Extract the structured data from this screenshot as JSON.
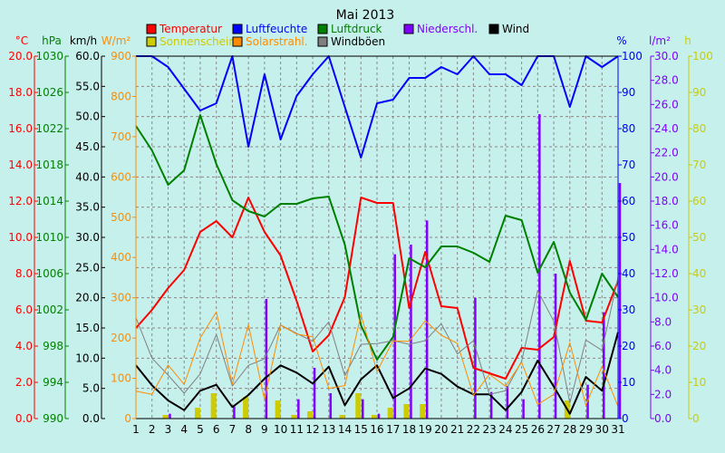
{
  "chart_data": {
    "type": "line",
    "title": "Mai 2013",
    "x": [
      1,
      2,
      3,
      4,
      5,
      6,
      7,
      8,
      9,
      10,
      11,
      12,
      13,
      14,
      15,
      16,
      17,
      18,
      19,
      20,
      21,
      22,
      23,
      24,
      25,
      26,
      27,
      28,
      29,
      30,
      31
    ],
    "left_axes": [
      {
        "unit": "°C",
        "color": "#ff0000",
        "range": [
          0,
          20
        ],
        "ticks": [
          "0.0",
          "2.0",
          "4.0",
          "6.0",
          "8.0",
          "10.0",
          "12.0",
          "14.0",
          "16.0",
          "18.0",
          "20.0"
        ]
      },
      {
        "unit": "hPa",
        "color": "#008000",
        "range": [
          990,
          1030
        ],
        "ticks": [
          "990",
          "994",
          "998",
          "1002",
          "1006",
          "1010",
          "1014",
          "1018",
          "1022",
          "1026",
          "1030"
        ]
      },
      {
        "unit": "km/h",
        "color": "#000000",
        "range": [
          0,
          60
        ],
        "ticks": [
          "0.0",
          "5.0",
          "10.0",
          "15.0",
          "20.0",
          "25.0",
          "30.0",
          "35.0",
          "40.0",
          "45.0",
          "50.0",
          "55.0",
          "60.0"
        ]
      },
      {
        "unit": "W/m²",
        "color": "#ff8c00",
        "range": [
          0,
          900
        ],
        "ticks": [
          "0",
          "100",
          "200",
          "300",
          "400",
          "500",
          "600",
          "700",
          "800",
          "900"
        ]
      }
    ],
    "right_axes": [
      {
        "unit": "%",
        "color": "#0000ff",
        "range": [
          0,
          100
        ],
        "ticks": [
          "0",
          "10",
          "20",
          "30",
          "40",
          "50",
          "60",
          "70",
          "80",
          "90",
          "100"
        ]
      },
      {
        "unit": "l/m²",
        "color": "#8000ff",
        "range": [
          0,
          30
        ],
        "ticks": [
          "0.0",
          "2.0",
          "4.0",
          "6.0",
          "8.0",
          "10.0",
          "12.0",
          "14.0",
          "16.0",
          "18.0",
          "20.0",
          "22.0",
          "24.0",
          "26.0",
          "28.0",
          "30.0"
        ]
      },
      {
        "unit": "h",
        "color": "#cccc00",
        "range": [
          0,
          100
        ],
        "ticks": [
          "0",
          "10",
          "20",
          "30",
          "40",
          "50",
          "60",
          "70",
          "80",
          "90",
          "100"
        ]
      }
    ],
    "legend": [
      {
        "label": "Temperatur",
        "color": "#ff0000"
      },
      {
        "label": "Luftfeuchte",
        "color": "#0000ff"
      },
      {
        "label": "Luftdruck",
        "color": "#008000"
      },
      {
        "label": "Niederschl.",
        "color": "#8000ff"
      },
      {
        "label": "Wind",
        "color": "#000000"
      },
      {
        "label": "Sonnenschein",
        "color": "#cccc00"
      },
      {
        "label": "Solarstrahl.",
        "color": "#ff8c00"
      },
      {
        "label": "Windböen",
        "color": "#808080"
      }
    ],
    "series": [
      {
        "name": "Temperatur",
        "color": "#ff0000",
        "axis": "°C",
        "values": [
          5.0,
          6.0,
          7.2,
          8.2,
          10.3,
          10.9,
          10.0,
          12.2,
          10.3,
          9.0,
          6.5,
          3.7,
          4.6,
          6.7,
          12.2,
          11.9,
          11.9,
          6.1,
          9.2,
          6.2,
          6.1,
          2.8,
          2.5,
          2.2,
          3.9,
          3.8,
          4.5,
          8.7,
          5.4,
          5.3,
          7.6
        ]
      },
      {
        "name": "Luftfeuchte",
        "color": "#0000ff",
        "axis": "%",
        "values": [
          100,
          100,
          97,
          91,
          85,
          87,
          100,
          75,
          95,
          77,
          89,
          95,
          100,
          86,
          72,
          87,
          88,
          94,
          94,
          97,
          95,
          100,
          95,
          95,
          92,
          100,
          100,
          86,
          100,
          97,
          100
        ]
      },
      {
        "name": "Luftdruck",
        "color": "#008000",
        "axis": "hPa",
        "values": [
          1022.3,
          1019.6,
          1015.8,
          1017.4,
          1023.5,
          1018.1,
          1014.1,
          1012.9,
          1012.3,
          1013.7,
          1013.7,
          1014.3,
          1014.5,
          1009.2,
          1000.3,
          996.5,
          999.0,
          1007.7,
          1006.7,
          1009.0,
          1009.0,
          1008.3,
          1007.3,
          1012.4,
          1011.9,
          1006.1,
          1009.5,
          1003.9,
          1000.9,
          1006.0,
          1003.4
        ]
      },
      {
        "name": "Wind",
        "color": "#000000",
        "axis": "km/h",
        "values": [
          8.8,
          5.5,
          3.0,
          1.4,
          4.6,
          5.6,
          1.9,
          3.9,
          6.6,
          8.8,
          7.6,
          5.8,
          8.6,
          2.2,
          6.5,
          8.8,
          3.4,
          5.0,
          8.3,
          7.4,
          5.3,
          4.0,
          4.0,
          1.4,
          4.4,
          9.6,
          5.3,
          0.8,
          6.9,
          4.6,
          14.3
        ]
      },
      {
        "name": "Windböen",
        "color": "#808080",
        "axis": "km/h",
        "values": [
          16.7,
          10.0,
          7.2,
          4.2,
          7.4,
          13.9,
          5.4,
          8.8,
          9.9,
          15.5,
          14.1,
          12.8,
          16.0,
          7.1,
          12.3,
          12.4,
          12.9,
          12.3,
          12.9,
          15.7,
          10.7,
          12.9,
          4.0,
          4.6,
          9.5,
          21.2,
          16.1,
          2.6,
          13.0,
          11.3,
          23.4
        ]
      },
      {
        "name": "Solarstrahl.",
        "color": "#ff8c00",
        "axis": "W/m²",
        "values": [
          68,
          60,
          133,
          85,
          200,
          265,
          85,
          233,
          47,
          232,
          210,
          203,
          75,
          82,
          258,
          117,
          193,
          192,
          243,
          207,
          187,
          57,
          110,
          80,
          140,
          35,
          60,
          188,
          33,
          130,
          30
        ]
      }
    ],
    "bars": [
      {
        "name": "Sonnenschein",
        "color": "#cccc00",
        "axis": "h",
        "values": [
          0,
          0,
          1,
          0,
          3,
          7,
          0,
          6,
          0,
          5,
          1,
          2,
          0,
          1,
          7,
          1,
          3,
          4,
          4,
          0,
          0,
          0,
          0,
          0,
          0,
          0,
          0,
          5,
          0,
          0,
          0
        ]
      },
      {
        "name": "Niederschl.",
        "color": "#8000ff",
        "axis": "l/m²",
        "values": [
          0,
          0,
          0.4,
          0,
          0,
          0,
          1.0,
          0,
          9.9,
          0,
          1.6,
          4.2,
          2.1,
          0,
          1.6,
          0.4,
          13.6,
          14.4,
          16.4,
          0,
          0,
          10.0,
          2.2,
          2.7,
          1.6,
          25.2,
          12.0,
          0,
          2.8,
          8.8,
          19.5
        ]
      }
    ]
  }
}
